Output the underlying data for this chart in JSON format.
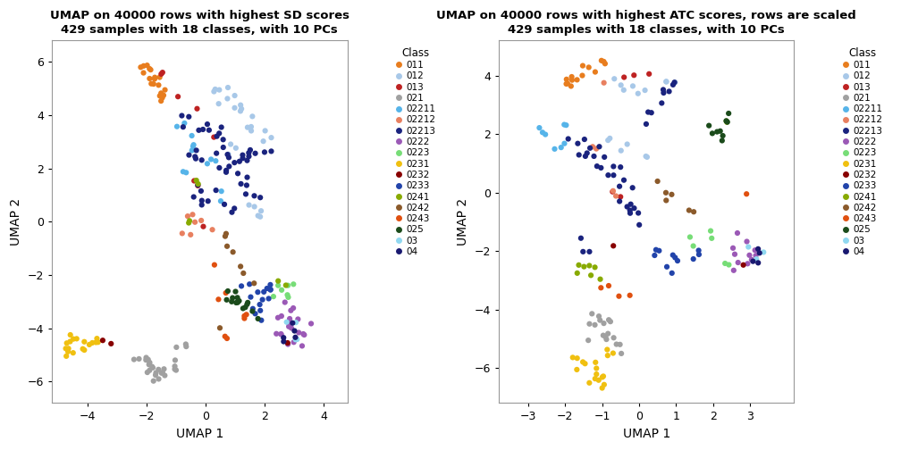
{
  "title1": "UMAP on 40000 rows with highest SD scores\n429 samples with 18 classes, with 10 PCs",
  "title2": "UMAP on 40000 rows with highest ATC scores, rows are scaled\n429 samples with 18 classes, with 10 PCs",
  "xlabel": "UMAP 1",
  "ylabel": "UMAP 2",
  "classes": [
    "011",
    "012",
    "013",
    "021",
    "02211",
    "02212",
    "02213",
    "0222",
    "0223",
    "0231",
    "0232",
    "0233",
    "0241",
    "0242",
    "0243",
    "025",
    "03",
    "04"
  ],
  "colors": {
    "011": "#E87D1E",
    "012": "#A8C8E8",
    "013": "#BE2222",
    "021": "#A0A0A0",
    "02211": "#56B4E9",
    "02212": "#E88060",
    "02213": "#1A237E",
    "0222": "#9B59B6",
    "0223": "#77DD77",
    "0231": "#F0C010",
    "0232": "#880000",
    "0233": "#2244AA",
    "0241": "#88AA00",
    "0242": "#8B5A2B",
    "0243": "#E05010",
    "025": "#1B4B1B",
    "03": "#90D8F0",
    "04": "#191970"
  },
  "xlim1": [
    -5.2,
    4.8
  ],
  "ylim1": [
    -6.8,
    6.8
  ],
  "xlim2": [
    -3.8,
    4.2
  ],
  "ylim2": [
    -7.2,
    5.2
  ],
  "xticks1": [
    -4,
    -2,
    0,
    2,
    4
  ],
  "yticks1": [
    -6,
    -4,
    -2,
    0,
    2,
    4,
    6
  ],
  "xticks2": [
    -3,
    -2,
    -1,
    0,
    1,
    2,
    3
  ],
  "yticks2": [
    -6,
    -4,
    -2,
    0,
    2,
    4
  ]
}
